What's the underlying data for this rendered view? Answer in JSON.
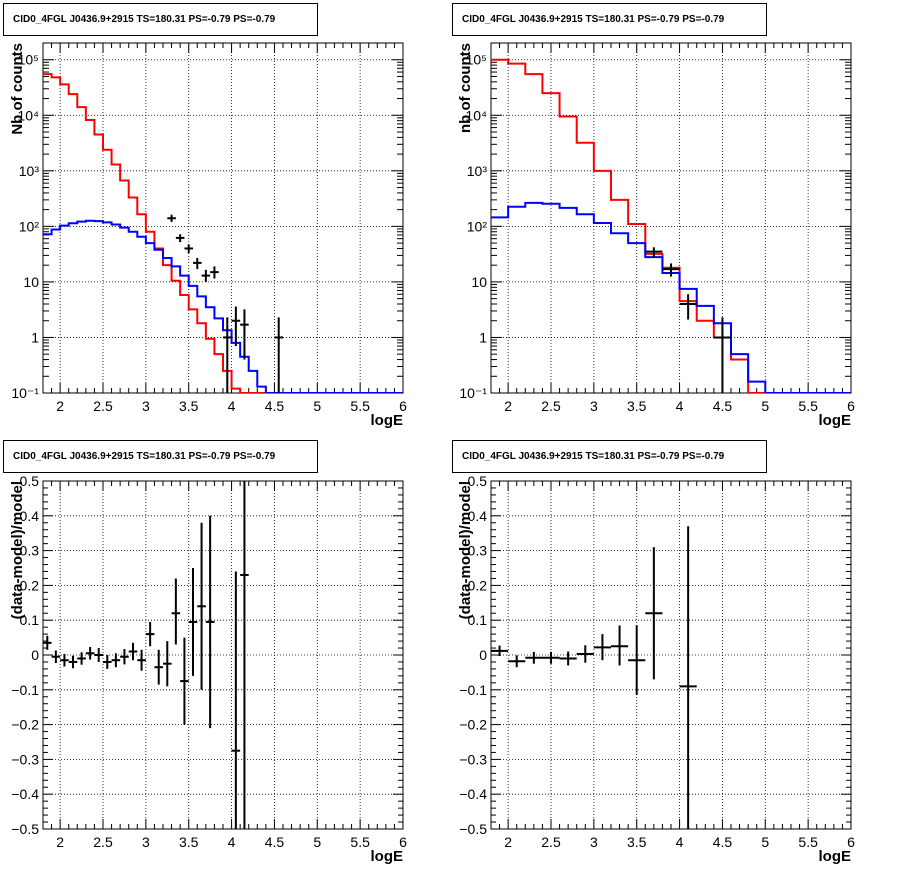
{
  "colors": {
    "model_total": "#ff0000",
    "source_model": "#0000ff",
    "data": "#000000",
    "grid": "#000000",
    "background": "#ffffff"
  },
  "chart_data": [
    {
      "type": "line",
      "title": "CID0_4FGL J0436.9+2915 TS=180.31 PS=-0.79 PS=-0.79",
      "xlabel": "logE",
      "ylabel": "Nb of counts",
      "log_y": true,
      "grid": true,
      "xlim": [
        1.8,
        6
      ],
      "ylim": [
        0.1,
        200000
      ],
      "x_ticks": [
        "2",
        "2.5",
        "3",
        "3.5",
        "4",
        "4.5",
        "5",
        "5.5",
        "6"
      ],
      "y_ticks": [
        "10⁻¹",
        "1",
        "10",
        "10²",
        "10³",
        "10⁴",
        "10⁵"
      ],
      "bin_edges": [
        1.8,
        1.9,
        2.0,
        2.1,
        2.2,
        2.3,
        2.4,
        2.5,
        2.6,
        2.7,
        2.8,
        2.9,
        3.0,
        3.1,
        3.2,
        3.3,
        3.4,
        3.5,
        3.6,
        3.7,
        3.8,
        3.9,
        4.0,
        4.1,
        4.2,
        4.3,
        4.4,
        4.5,
        4.6,
        4.7,
        4.8,
        4.9,
        5.0,
        5.1,
        5.2,
        5.3,
        5.4,
        5.5,
        5.6,
        5.7,
        5.8,
        5.9,
        6.0
      ],
      "series": [
        {
          "color": "#ff0000",
          "style": "step",
          "values": [
            55000,
            48000,
            36000,
            24000,
            14000,
            8200,
            4500,
            2400,
            1300,
            670,
            330,
            165,
            80,
            40,
            20,
            10.5,
            5.8,
            3.2,
            1.8,
            0.95,
            0.5,
            0.25,
            0.12,
            0.1,
            0.1,
            0.1,
            0.1,
            0.1,
            0.1,
            0.1,
            0.1,
            0.1,
            0.1,
            0.1,
            0.1,
            0.1,
            0.1,
            0.1,
            0.1,
            0.1,
            0.1,
            0.1
          ]
        },
        {
          "color": "#0000ff",
          "style": "step",
          "values": [
            72,
            88,
            103,
            114,
            122,
            126,
            124,
            118,
            108,
            95,
            80,
            65,
            50,
            38,
            27,
            19,
            13,
            8.5,
            5.5,
            3.5,
            2.2,
            1.35,
            0.8,
            0.45,
            0.25,
            0.13,
            0.1,
            0.1,
            0.1,
            0.1,
            0.1,
            0.1,
            0.1,
            0.1,
            0.1,
            0.1,
            0.1,
            0.1,
            0.1,
            0.1,
            0.1,
            0.1
          ]
        },
        {
          "color": "#000000",
          "style": "errorbars",
          "points": [
            {
              "x": 3.3,
              "y": 140,
              "lo": 120,
              "hi": 162,
              "dx": 0.05
            },
            {
              "x": 3.4,
              "y": 62,
              "lo": 52,
              "hi": 72,
              "dx": 0.05
            },
            {
              "x": 3.5,
              "y": 40,
              "lo": 33,
              "hi": 47,
              "dx": 0.05
            },
            {
              "x": 3.6,
              "y": 22,
              "lo": 17,
              "hi": 27,
              "dx": 0.05
            },
            {
              "x": 3.7,
              "y": 13,
              "lo": 10,
              "hi": 16.5,
              "dx": 0.05
            },
            {
              "x": 3.8,
              "y": 15,
              "lo": 11.5,
              "hi": 19,
              "dx": 0.05
            },
            {
              "x": 3.95,
              "y": 1,
              "lo": 0.1,
              "hi": 2.3,
              "dx": 0.05
            },
            {
              "x": 4.05,
              "y": 2,
              "lo": 0.7,
              "hi": 3.6,
              "dx": 0.05
            },
            {
              "x": 4.15,
              "y": 1.7,
              "lo": 0.4,
              "hi": 3.2,
              "dx": 0.05
            },
            {
              "x": 4.55,
              "y": 1,
              "lo": 0.1,
              "hi": 2.3,
              "dx": 0.05
            }
          ]
        }
      ]
    },
    {
      "type": "line",
      "title": "CID0_4FGL J0436.9+2915 TS=180.31 PS=-0.79 PS=-0.79",
      "xlabel": "logE",
      "ylabel": "nb of counts",
      "log_y": true,
      "grid": true,
      "xlim": [
        1.8,
        6
      ],
      "ylim": [
        0.1,
        200000
      ],
      "x_ticks": [
        "2",
        "2.5",
        "3",
        "3.5",
        "4",
        "4.5",
        "5",
        "5.5",
        "6"
      ],
      "y_ticks": [
        "10⁻¹",
        "1",
        "10",
        "10²",
        "10³",
        "10⁴",
        "10⁵"
      ],
      "bin_edges": [
        1.8,
        2.0,
        2.2,
        2.4,
        2.6,
        2.8,
        3.0,
        3.2,
        3.4,
        3.6,
        3.8,
        4.0,
        4.2,
        4.4,
        4.6,
        4.8,
        5.0,
        5.2,
        5.4,
        5.6,
        5.8,
        6.0
      ],
      "series": [
        {
          "color": "#ff0000",
          "style": "step",
          "values": [
            100000,
            85000,
            55000,
            25000,
            9500,
            3200,
            1000,
            300,
            110,
            32,
            18,
            4.5,
            2.0,
            1.0,
            0.4,
            0.1,
            0.1,
            0.1,
            0.1,
            0.1,
            0.1
          ]
        },
        {
          "color": "#0000ff",
          "style": "step",
          "values": [
            145,
            225,
            265,
            255,
            215,
            165,
            115,
            75,
            50,
            28,
            14.5,
            7.5,
            3.7,
            1.8,
            0.5,
            0.16,
            0.1,
            0.1,
            0.1,
            0.1,
            0.1
          ]
        },
        {
          "color": "#000000",
          "style": "errorbars",
          "points": [
            {
              "x": 3.7,
              "y": 35,
              "lo": 28,
              "hi": 42,
              "dx": 0.1
            },
            {
              "x": 3.9,
              "y": 17,
              "lo": 12.5,
              "hi": 21.5,
              "dx": 0.1
            },
            {
              "x": 4.1,
              "y": 4,
              "lo": 2.1,
              "hi": 6,
              "dx": 0.1
            },
            {
              "x": 4.5,
              "y": 1,
              "lo": 0.1,
              "hi": 2.3,
              "dx": 0.1
            }
          ]
        }
      ]
    },
    {
      "type": "scatter",
      "title": "CID0_4FGL J0436.9+2915 TS=180.31 PS=-0.79 PS=-0.79",
      "xlabel": "logE",
      "ylabel": "(data-model)/model",
      "log_y": false,
      "grid": true,
      "xlim": [
        1.8,
        6
      ],
      "ylim": [
        -0.5,
        0.5
      ],
      "x_ticks": [
        "2",
        "2.5",
        "3",
        "3.5",
        "4",
        "4.5",
        "5",
        "5.5",
        "6"
      ],
      "y_ticks": [
        "−0.5",
        "−0.4",
        "−0.3",
        "−0.2",
        "−0.1",
        "0",
        "0.1",
        "0.2",
        "0.3",
        "0.4",
        "0.5"
      ],
      "series": [
        {
          "color": "#000000",
          "style": "errorbars",
          "points": [
            {
              "x": 1.85,
              "y": 0.035,
              "lo": 0.015,
              "hi": 0.055,
              "dx": 0.05
            },
            {
              "x": 1.95,
              "y": -0.005,
              "lo": -0.023,
              "hi": 0.013,
              "dx": 0.05
            },
            {
              "x": 2.05,
              "y": -0.015,
              "lo": -0.033,
              "hi": 0.003,
              "dx": 0.05
            },
            {
              "x": 2.15,
              "y": -0.02,
              "lo": -0.038,
              "hi": -0.002,
              "dx": 0.05
            },
            {
              "x": 2.25,
              "y": -0.01,
              "lo": -0.028,
              "hi": 0.008,
              "dx": 0.05
            },
            {
              "x": 2.35,
              "y": 0.005,
              "lo": -0.013,
              "hi": 0.023,
              "dx": 0.05
            },
            {
              "x": 2.45,
              "y": 0.0,
              "lo": -0.02,
              "hi": 0.02,
              "dx": 0.05
            },
            {
              "x": 2.55,
              "y": -0.02,
              "lo": -0.04,
              "hi": 0.0,
              "dx": 0.05
            },
            {
              "x": 2.65,
              "y": -0.015,
              "lo": -0.035,
              "hi": 0.005,
              "dx": 0.05
            },
            {
              "x": 2.75,
              "y": -0.005,
              "lo": -0.027,
              "hi": 0.017,
              "dx": 0.05
            },
            {
              "x": 2.85,
              "y": 0.01,
              "lo": -0.015,
              "hi": 0.035,
              "dx": 0.05
            },
            {
              "x": 2.95,
              "y": -0.015,
              "lo": -0.045,
              "hi": 0.015,
              "dx": 0.05
            },
            {
              "x": 3.05,
              "y": 0.06,
              "lo": 0.025,
              "hi": 0.095,
              "dx": 0.05
            },
            {
              "x": 3.15,
              "y": -0.035,
              "lo": -0.085,
              "hi": 0.015,
              "dx": 0.05
            },
            {
              "x": 3.25,
              "y": -0.025,
              "lo": -0.09,
              "hi": 0.04,
              "dx": 0.05
            },
            {
              "x": 3.35,
              "y": 0.12,
              "lo": 0.03,
              "hi": 0.22,
              "dx": 0.05
            },
            {
              "x": 3.45,
              "y": -0.075,
              "lo": -0.2,
              "hi": 0.05,
              "dx": 0.05
            },
            {
              "x": 3.55,
              "y": 0.095,
              "lo": -0.06,
              "hi": 0.25,
              "dx": 0.05
            },
            {
              "x": 3.65,
              "y": 0.14,
              "lo": -0.1,
              "hi": 0.38,
              "dx": 0.05
            },
            {
              "x": 3.75,
              "y": 0.095,
              "lo": -0.21,
              "hi": 0.4,
              "dx": 0.05
            },
            {
              "x": 4.05,
              "y": -0.275,
              "lo": -0.5,
              "hi": 0.24,
              "dx": 0.05
            },
            {
              "x": 4.15,
              "y": 0.23,
              "lo": -0.5,
              "hi": 0.5,
              "dx": 0.05
            }
          ]
        }
      ]
    },
    {
      "type": "scatter",
      "title": "CID0_4FGL J0436.9+2915 TS=180.31 PS=-0.79 PS=-0.79",
      "xlabel": "logE",
      "ylabel": "(data-model)/model",
      "log_y": false,
      "grid": true,
      "xlim": [
        1.8,
        6
      ],
      "ylim": [
        -0.5,
        0.5
      ],
      "x_ticks": [
        "2",
        "2.5",
        "3",
        "3.5",
        "4",
        "4.5",
        "5",
        "5.5",
        "6"
      ],
      "y_ticks": [
        "−0.5",
        "−0.4",
        "−0.3",
        "−0.2",
        "−0.1",
        "0",
        "0.1",
        "0.2",
        "0.3",
        "0.4",
        "0.5"
      ],
      "series": [
        {
          "color": "#000000",
          "style": "errorbars",
          "points": [
            {
              "x": 1.9,
              "y": 0.012,
              "lo": -0.003,
              "hi": 0.027,
              "dx": 0.1
            },
            {
              "x": 2.1,
              "y": -0.018,
              "lo": -0.035,
              "hi": -0.001,
              "dx": 0.1
            },
            {
              "x": 2.3,
              "y": -0.008,
              "lo": -0.025,
              "hi": 0.009,
              "dx": 0.1
            },
            {
              "x": 2.5,
              "y": -0.008,
              "lo": -0.025,
              "hi": 0.009,
              "dx": 0.1
            },
            {
              "x": 2.7,
              "y": -0.01,
              "lo": -0.03,
              "hi": 0.01,
              "dx": 0.1
            },
            {
              "x": 2.9,
              "y": 0.003,
              "lo": -0.022,
              "hi": 0.028,
              "dx": 0.1
            },
            {
              "x": 3.1,
              "y": 0.022,
              "lo": -0.015,
              "hi": 0.06,
              "dx": 0.1
            },
            {
              "x": 3.3,
              "y": 0.025,
              "lo": -0.03,
              "hi": 0.085,
              "dx": 0.1
            },
            {
              "x": 3.5,
              "y": -0.015,
              "lo": -0.115,
              "hi": 0.085,
              "dx": 0.1
            },
            {
              "x": 3.7,
              "y": 0.12,
              "lo": -0.07,
              "hi": 0.31,
              "dx": 0.1
            },
            {
              "x": 4.1,
              "y": -0.09,
              "lo": -0.5,
              "hi": 0.37,
              "dx": 0.1
            }
          ]
        }
      ]
    }
  ]
}
